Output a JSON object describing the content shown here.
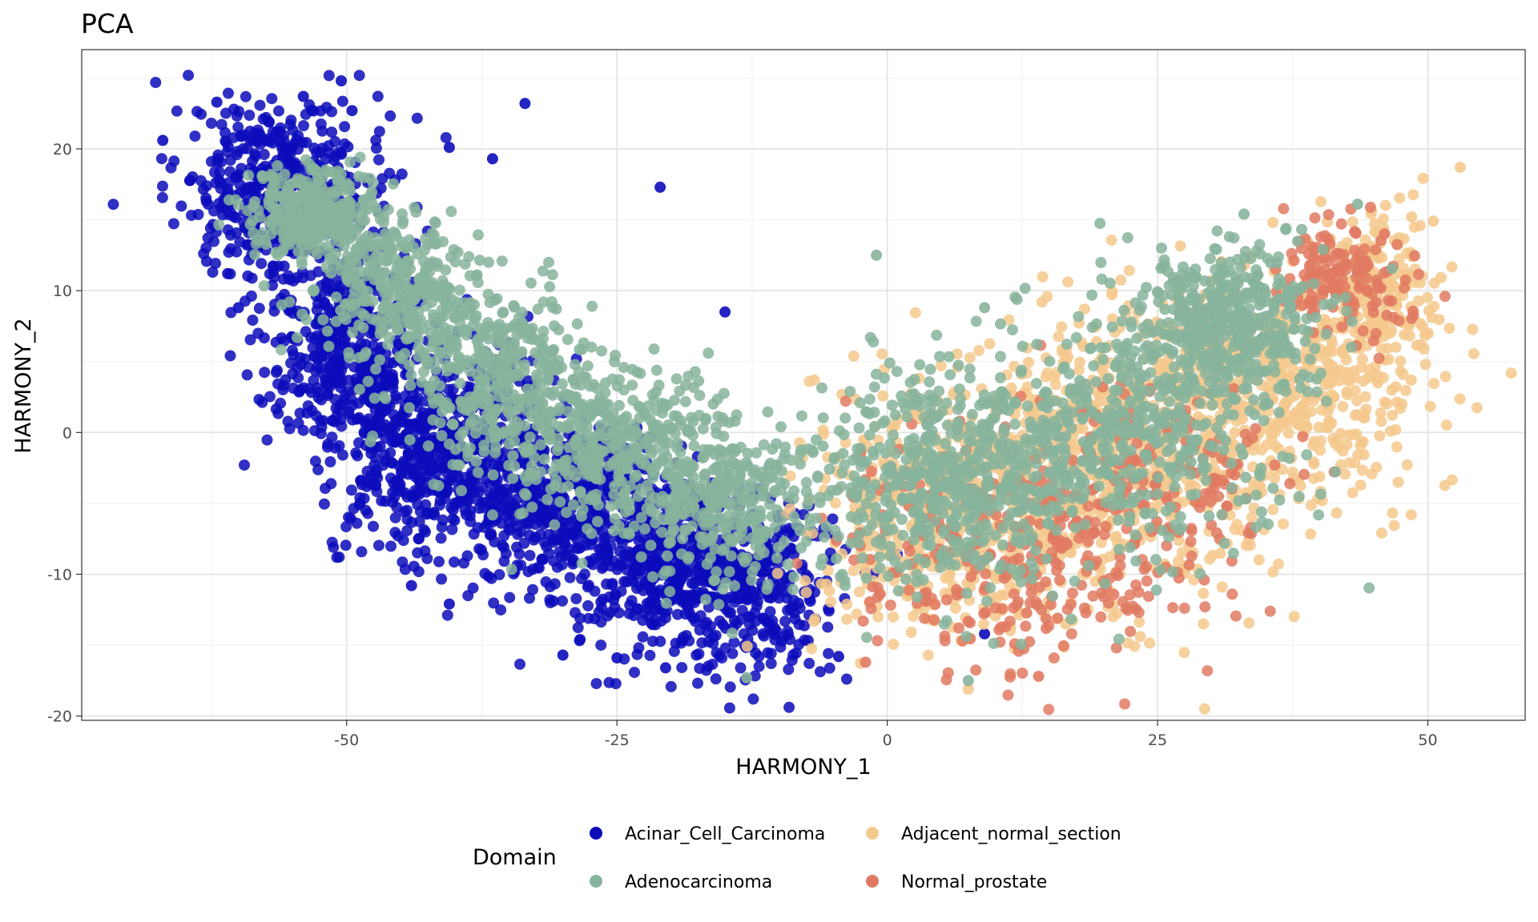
{
  "chart_data": {
    "type": "scatter",
    "title": "PCA",
    "xlabel": "HARMONY_1",
    "ylabel": "HARMONY_2",
    "xlim": [
      -74.5,
      59
    ],
    "ylim": [
      -20.3,
      27
    ],
    "x_ticks": [
      -50,
      -25,
      0,
      25,
      50
    ],
    "y_ticks": [
      20,
      10,
      0,
      -10,
      -20
    ],
    "grid": true,
    "legend": {
      "title": "Domain",
      "position": "bottom",
      "entries": [
        {
          "name": "Acinar_Cell_Carcinoma",
          "color": "#0c0cbb"
        },
        {
          "name": "Adjacent_normal_section",
          "color": "#f4c98d"
        },
        {
          "name": "Adenocarcinoma",
          "color": "#87b49c"
        },
        {
          "name": "Normal_prostate",
          "color": "#e17a62"
        }
      ]
    },
    "series": [
      {
        "name": "Acinar_Cell_Carcinoma",
        "color": "#0c0cbb",
        "draw_order": 1,
        "approx_points": 2600,
        "clusters": [
          {
            "x": -56,
            "y": 17,
            "sx": 4.5,
            "sy": 3.5,
            "n": 500
          },
          {
            "x": -50,
            "y": 6,
            "sx": 4,
            "sy": 3.5,
            "n": 350
          },
          {
            "x": -42,
            "y": -1,
            "sx": 5,
            "sy": 3.5,
            "n": 600
          },
          {
            "x": -30,
            "y": -5,
            "sx": 5,
            "sy": 3,
            "n": 450
          },
          {
            "x": -20,
            "y": -10,
            "sx": 5,
            "sy": 3,
            "n": 450
          },
          {
            "x": -12,
            "y": -11,
            "sx": 4,
            "sy": 3,
            "n": 250
          }
        ],
        "highlights": [
          {
            "x": -50.5,
            "y": 24.8
          },
          {
            "x": -54,
            "y": 23.7
          },
          {
            "x": -62,
            "y": 23.3
          },
          {
            "x": -33.5,
            "y": 23.2
          },
          {
            "x": -49.5,
            "y": 22.7
          },
          {
            "x": -67,
            "y": 20.6
          },
          {
            "x": -36.5,
            "y": 19.3
          },
          {
            "x": -40.5,
            "y": 20.1
          },
          {
            "x": -21,
            "y": 17.3
          },
          {
            "x": -15,
            "y": 8.5
          },
          {
            "x": -44,
            "y": -10.8
          },
          {
            "x": -40.5,
            "y": -12.1
          },
          {
            "x": -30,
            "y": -15.7
          },
          {
            "x": -25,
            "y": -15.9
          },
          {
            "x": -20.5,
            "y": -16.6
          },
          {
            "x": -4.5,
            "y": -15.8
          },
          {
            "x": 9,
            "y": -14.2
          },
          {
            "x": -61,
            "y": 11.2
          },
          {
            "x": -60,
            "y": 8.8
          }
        ]
      },
      {
        "name": "Adjacent_normal_section",
        "color": "#f4c98d",
        "draw_order": 2,
        "approx_points": 1800,
        "clusters": [
          {
            "x": 12,
            "y": -4,
            "sx": 8,
            "sy": 5,
            "n": 500
          },
          {
            "x": 25,
            "y": 0,
            "sx": 7,
            "sy": 5,
            "n": 500
          },
          {
            "x": 38,
            "y": 3,
            "sx": 6,
            "sy": 4,
            "n": 400
          },
          {
            "x": 45,
            "y": 10,
            "sx": 3,
            "sy": 3,
            "n": 200
          },
          {
            "x": 2,
            "y": -7,
            "sx": 5,
            "sy": 4,
            "n": 200
          }
        ],
        "highlights": [
          {
            "x": 53,
            "y": 18.7
          },
          {
            "x": 50.5,
            "y": 14.9
          },
          {
            "x": 48.5,
            "y": 15.2
          },
          {
            "x": 7.5,
            "y": -18.1
          },
          {
            "x": 16.5,
            "y": -13.5
          }
        ]
      },
      {
        "name": "Normal_prostate",
        "color": "#e17a62",
        "draw_order": 3,
        "approx_points": 600,
        "clusters": [
          {
            "x": 42,
            "y": 11,
            "sx": 3,
            "sy": 2,
            "n": 150
          },
          {
            "x": 14,
            "y": -9,
            "sx": 7,
            "sy": 4,
            "n": 250
          },
          {
            "x": 25,
            "y": -3,
            "sx": 6,
            "sy": 4,
            "n": 150
          },
          {
            "x": 2,
            "y": -5,
            "sx": 4,
            "sy": 4,
            "n": 50
          }
        ],
        "highlights": [
          {
            "x": -2,
            "y": -16.2
          },
          {
            "x": 14,
            "y": -17.2
          },
          {
            "x": 46,
            "y": 14
          }
        ]
      },
      {
        "name": "Adenocarcinoma",
        "color": "#87b49c",
        "draw_order": 4,
        "approx_points": 3200,
        "clusters": [
          {
            "x": -53,
            "y": 15.5,
            "sx": 3,
            "sy": 1.5,
            "n": 350
          },
          {
            "x": -45,
            "y": 10,
            "sx": 4,
            "sy": 2.5,
            "n": 350
          },
          {
            "x": -36,
            "y": 4,
            "sx": 4,
            "sy": 3,
            "n": 350
          },
          {
            "x": -25,
            "y": -1,
            "sx": 5,
            "sy": 3,
            "n": 400
          },
          {
            "x": -15,
            "y": -5,
            "sx": 5,
            "sy": 3,
            "n": 350
          },
          {
            "x": 3,
            "y": -4,
            "sx": 5,
            "sy": 4,
            "n": 350
          },
          {
            "x": 13,
            "y": -2,
            "sx": 6,
            "sy": 4,
            "n": 350
          },
          {
            "x": 26,
            "y": 1,
            "sx": 6,
            "sy": 4,
            "n": 350
          },
          {
            "x": 32,
            "y": 8,
            "sx": 4,
            "sy": 2.5,
            "n": 400
          }
        ],
        "highlights": [
          {
            "x": 43.5,
            "y": 16.1
          },
          {
            "x": -1,
            "y": 12.5
          },
          {
            "x": -13,
            "y": -17.3
          },
          {
            "x": 7.5,
            "y": -17.5
          },
          {
            "x": 9,
            "y": 8.8
          },
          {
            "x": 33,
            "y": 15.4
          }
        ]
      }
    ]
  }
}
